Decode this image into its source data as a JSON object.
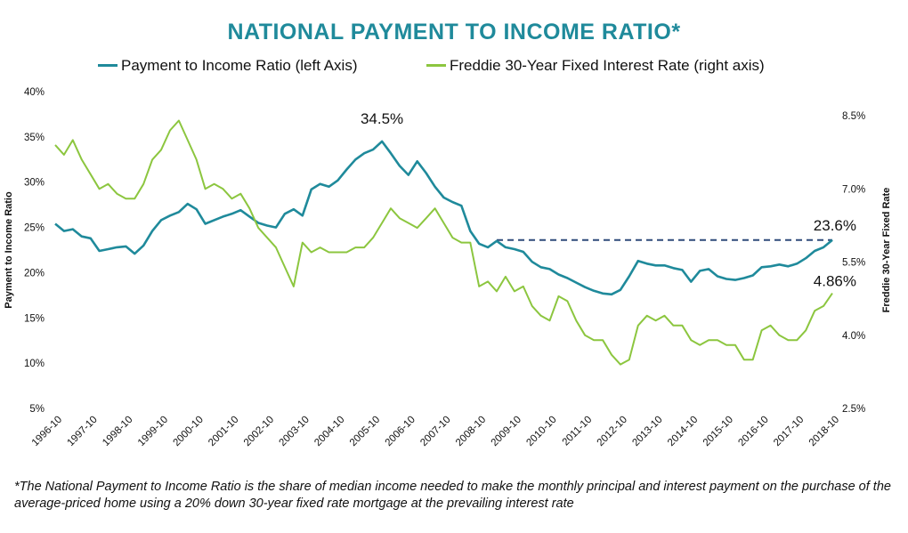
{
  "title": "NATIONAL PAYMENT TO INCOME RATIO*",
  "footnote": "*The National Payment to Income Ratio is the share of median income needed to make the monthly principal and interest payment on the purchase of the average-priced home using a 20% down 30-year fixed rate mortgage at the prevailing interest rate",
  "chart_data": {
    "type": "line",
    "x_start": "1996-10",
    "x_end": "2018-10",
    "x_tick_labels": [
      "1996-10",
      "1997-10",
      "1998-10",
      "1999-10",
      "2000-10",
      "2001-10",
      "2002-10",
      "2003-10",
      "2004-10",
      "2005-10",
      "2006-10",
      "2007-10",
      "2008-10",
      "2009-10",
      "2010-10",
      "2011-10",
      "2012-10",
      "2013-10",
      "2014-10",
      "2015-10",
      "2016-10",
      "2017-10",
      "2018-10"
    ],
    "ylabel_left": "Payment to Income Ratio",
    "ylabel_right": "Freddie 30-Year Fixed Rate",
    "ylim_left": [
      5,
      40
    ],
    "yticks_left": [
      "5%",
      "10%",
      "15%",
      "20%",
      "25%",
      "30%",
      "35%",
      "40%"
    ],
    "ylim_right": [
      2.5,
      8.5
    ],
    "yticks_right": [
      "2.5%",
      "4.0%",
      "5.5%",
      "7.0%",
      "8.5%"
    ],
    "legend_position": "top",
    "grid": false,
    "series": [
      {
        "name": "Payment to Income Ratio (left Axis)",
        "axis": "left",
        "color": "#1f8a9b",
        "x": [
          1996.75,
          1997.0,
          1997.25,
          1997.5,
          1997.75,
          1998.0,
          1998.25,
          1998.5,
          1998.75,
          1999.0,
          1999.25,
          1999.5,
          1999.75,
          2000.0,
          2000.25,
          2000.5,
          2000.75,
          2001.0,
          2001.25,
          2001.5,
          2001.75,
          2002.0,
          2002.25,
          2002.5,
          2002.75,
          2003.0,
          2003.25,
          2003.5,
          2003.75,
          2004.0,
          2004.25,
          2004.5,
          2004.75,
          2005.0,
          2005.25,
          2005.5,
          2005.75,
          2006.0,
          2006.25,
          2006.5,
          2006.75,
          2007.0,
          2007.25,
          2007.5,
          2007.75,
          2008.0,
          2008.25,
          2008.5,
          2008.75,
          2009.0,
          2009.25,
          2009.5,
          2009.75,
          2010.0,
          2010.25,
          2010.5,
          2010.75,
          2011.0,
          2011.25,
          2011.5,
          2011.75,
          2012.0,
          2012.25,
          2012.5,
          2012.75,
          2013.0,
          2013.25,
          2013.5,
          2013.75,
          2014.0,
          2014.25,
          2014.5,
          2014.75,
          2015.0,
          2015.25,
          2015.5,
          2015.75,
          2016.0,
          2016.25,
          2016.5,
          2016.75,
          2017.0,
          2017.25,
          2017.5,
          2017.75,
          2018.0,
          2018.25,
          2018.5,
          2018.75
        ],
        "values": [
          25.4,
          24.6,
          24.8,
          24.0,
          23.8,
          22.4,
          22.6,
          22.8,
          22.9,
          22.1,
          23.0,
          24.6,
          25.8,
          26.3,
          26.7,
          27.6,
          27.0,
          25.4,
          25.8,
          26.2,
          26.5,
          26.9,
          26.2,
          25.5,
          25.2,
          25.0,
          26.5,
          27.0,
          26.3,
          29.2,
          29.8,
          29.5,
          30.2,
          31.4,
          32.5,
          33.2,
          33.6,
          34.5,
          33.2,
          31.8,
          30.8,
          32.3,
          31.0,
          29.5,
          28.3,
          27.8,
          27.4,
          24.6,
          23.2,
          22.8,
          23.5,
          22.8,
          22.6,
          22.3,
          21.2,
          20.6,
          20.4,
          19.8,
          19.4,
          18.9,
          18.4,
          18.0,
          17.7,
          17.6,
          18.1,
          19.6,
          21.3,
          21.0,
          20.8,
          20.8,
          20.5,
          20.3,
          19.0,
          20.2,
          20.4,
          19.6,
          19.3,
          19.2,
          19.4,
          19.7,
          20.6,
          20.7,
          20.9,
          20.7,
          21.0,
          21.6,
          22.4,
          22.8,
          23.6
        ]
      },
      {
        "name": "Freddie 30-Year Fixed Interest Rate (right axis)",
        "axis": "right",
        "color": "#8cc63f",
        "x": [
          1996.75,
          1997.0,
          1997.25,
          1997.5,
          1997.75,
          1998.0,
          1998.25,
          1998.5,
          1998.75,
          1999.0,
          1999.25,
          1999.5,
          1999.75,
          2000.0,
          2000.25,
          2000.5,
          2000.75,
          2001.0,
          2001.25,
          2001.5,
          2001.75,
          2002.0,
          2002.25,
          2002.5,
          2002.75,
          2003.0,
          2003.25,
          2003.5,
          2003.75,
          2004.0,
          2004.25,
          2004.5,
          2004.75,
          2005.0,
          2005.25,
          2005.5,
          2005.75,
          2006.0,
          2006.25,
          2006.5,
          2006.75,
          2007.0,
          2007.25,
          2007.5,
          2007.75,
          2008.0,
          2008.25,
          2008.5,
          2008.75,
          2009.0,
          2009.25,
          2009.5,
          2009.75,
          2010.0,
          2010.25,
          2010.5,
          2010.75,
          2011.0,
          2011.25,
          2011.5,
          2011.75,
          2012.0,
          2012.25,
          2012.5,
          2012.75,
          2013.0,
          2013.25,
          2013.5,
          2013.75,
          2014.0,
          2014.25,
          2014.5,
          2014.75,
          2015.0,
          2015.25,
          2015.5,
          2015.75,
          2016.0,
          2016.25,
          2016.5,
          2016.75,
          2017.0,
          2017.25,
          2017.5,
          2017.75,
          2018.0,
          2018.25,
          2018.5,
          2018.75
        ],
        "values": [
          7.9,
          7.7,
          8.0,
          7.6,
          7.3,
          7.0,
          7.1,
          6.9,
          6.8,
          6.8,
          7.1,
          7.6,
          7.8,
          8.2,
          8.4,
          8.0,
          7.6,
          7.0,
          7.1,
          7.0,
          6.8,
          6.9,
          6.6,
          6.2,
          6.0,
          5.8,
          5.4,
          5.0,
          5.9,
          5.7,
          5.8,
          5.7,
          5.7,
          5.7,
          5.8,
          5.8,
          6.0,
          6.3,
          6.6,
          6.4,
          6.3,
          6.2,
          6.4,
          6.6,
          6.3,
          6.0,
          5.9,
          5.9,
          5.0,
          5.1,
          4.9,
          5.2,
          4.9,
          5.0,
          4.6,
          4.4,
          4.3,
          4.8,
          4.7,
          4.3,
          4.0,
          3.9,
          3.9,
          3.6,
          3.4,
          3.5,
          4.2,
          4.4,
          4.3,
          4.4,
          4.2,
          4.2,
          3.9,
          3.8,
          3.9,
          3.9,
          3.8,
          3.8,
          3.5,
          3.5,
          4.1,
          4.2,
          4.0,
          3.9,
          3.9,
          4.1,
          4.5,
          4.6,
          4.86
        ]
      }
    ],
    "annotations": [
      "34.5%",
      "23.6%",
      "4.86%"
    ],
    "reference_line": {
      "from": "2009-04",
      "to": "2018-10",
      "value": 23.6,
      "style": "dashed",
      "color": "#2e4a7a"
    }
  }
}
